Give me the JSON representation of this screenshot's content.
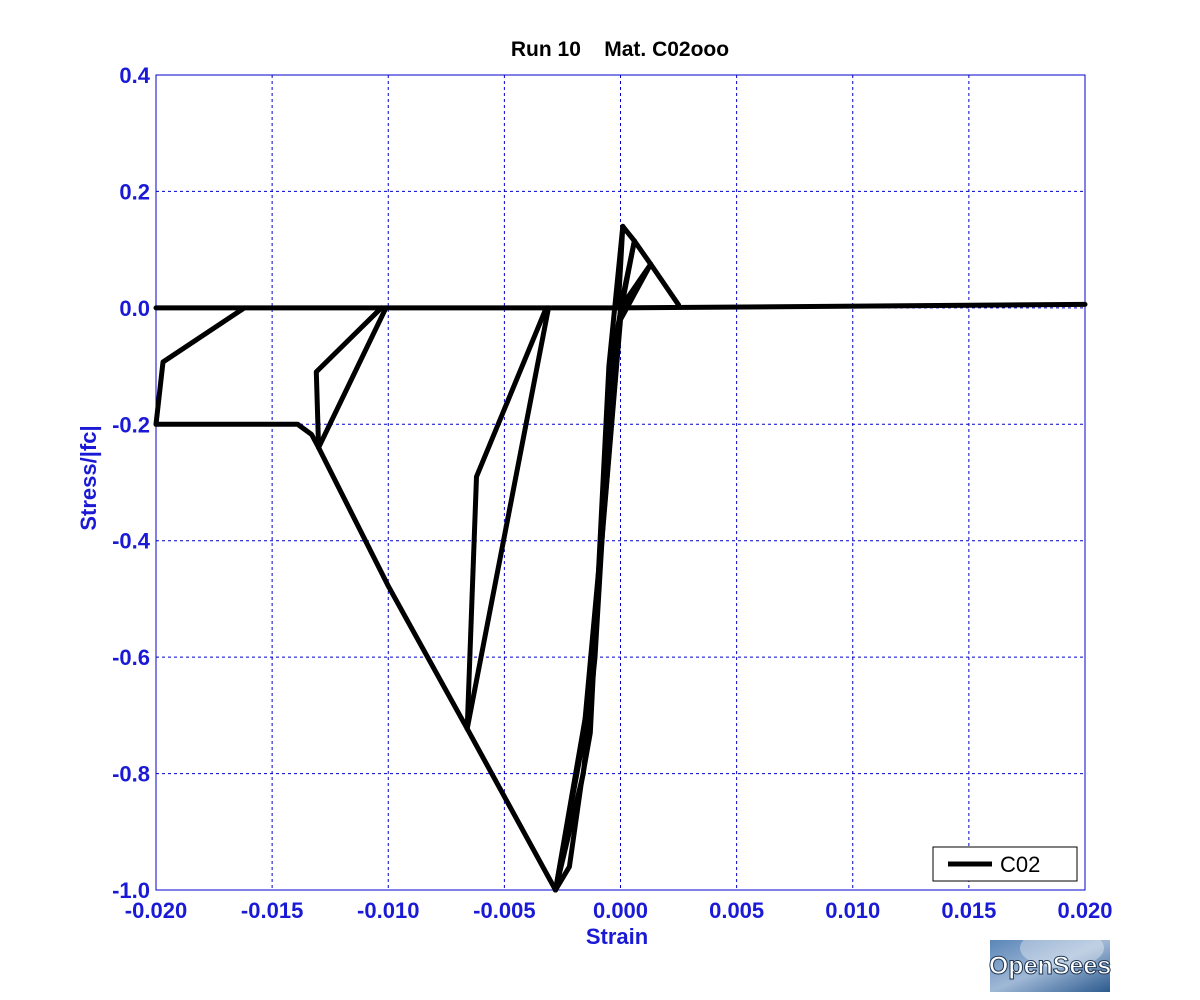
{
  "chart_data": {
    "type": "line",
    "title": "Run 10    Mat. C02ooo",
    "xlabel": "Strain",
    "ylabel": "Stress/|fc|",
    "xlim": [
      -0.02,
      0.02
    ],
    "ylim": [
      -1.0,
      0.4
    ],
    "grid": true,
    "legend_position": "bottom-right",
    "x_ticks": [
      "-0.020",
      "-0.015",
      "-0.010",
      "-0.005",
      "0.000",
      "0.005",
      "0.010",
      "0.015",
      "0.020"
    ],
    "y_ticks": [
      "0.4",
      "0.2",
      "0.0",
      "-0.2",
      "-0.4",
      "-0.6",
      "-0.8",
      "-1.0"
    ],
    "series": [
      {
        "name": "C02",
        "segments": [
          [
            [
              -0.02,
              0.0
            ],
            [
              0.0,
              0.0
            ],
            [
              0.02,
              0.006
            ]
          ],
          [
            [
              -0.02,
              -0.2
            ],
            [
              -0.0139,
              -0.2
            ],
            [
              -0.0133,
              -0.2175
            ],
            [
              -0.013,
              -0.24
            ],
            [
              -0.01,
              -0.478
            ],
            [
              -0.0066,
              -0.723
            ],
            [
              -0.0028,
              -1.0
            ]
          ],
          [
            [
              -0.02,
              -0.2
            ],
            [
              -0.0197,
              -0.093
            ],
            [
              -0.0162,
              0.0
            ]
          ],
          [
            [
              -0.013,
              -0.24
            ],
            [
              -0.0131,
              -0.11
            ],
            [
              -0.0103,
              0.0
            ]
          ],
          [
            [
              -0.013,
              -0.24
            ],
            [
              -0.0101,
              0.0
            ]
          ],
          [
            [
              -0.0066,
              -0.723
            ],
            [
              -0.0062,
              -0.29
            ],
            [
              -0.0032,
              0.0
            ]
          ],
          [
            [
              -0.0066,
              -0.723
            ],
            [
              -0.0031,
              0.0
            ]
          ],
          [
            [
              -0.0028,
              -1.0
            ],
            [
              -0.0022,
              -0.96
            ],
            [
              -0.0017,
              -0.82
            ],
            [
              -0.0013,
              -0.73
            ],
            [
              -0.0005,
              -0.1
            ],
            [
              0.0001,
              0.14
            ]
          ],
          [
            [
              -0.0028,
              -1.0
            ],
            [
              -0.0016,
              -0.8
            ],
            [
              -0.0011,
              -0.6
            ],
            [
              -0.0003,
              -0.07
            ],
            [
              0.0006,
              0.115
            ]
          ],
          [
            [
              -0.0028,
              -1.0
            ],
            [
              -0.0015,
              -0.7
            ],
            [
              -0.0008,
              -0.4
            ],
            [
              0.0,
              -0.02
            ],
            [
              0.0013,
              0.075
            ]
          ],
          [
            [
              -0.0028,
              -1.0
            ],
            [
              -0.0016,
              -0.74
            ],
            [
              -0.0006,
              -0.3
            ],
            [
              0.0,
              0.0
            ]
          ],
          [
            [
              0.0001,
              0.14
            ],
            [
              0.0006,
              0.115
            ],
            [
              0.0013,
              0.075
            ],
            [
              0.0025,
              0.005
            ]
          ],
          [
            [
              -0.0001,
              0.0
            ],
            [
              0.0001,
              0.14
            ]
          ],
          [
            [
              0.0,
              0.0
            ],
            [
              0.0006,
              0.115
            ]
          ],
          [
            [
              0.0,
              0.0
            ],
            [
              0.0013,
              0.075
            ]
          ]
        ]
      }
    ]
  },
  "legend": {
    "label": "C02"
  },
  "logo": {
    "text": "OpenSees"
  },
  "colors": {
    "axis_text": "#1a1ad6",
    "grid": "#0000cc",
    "series": "#000000"
  }
}
